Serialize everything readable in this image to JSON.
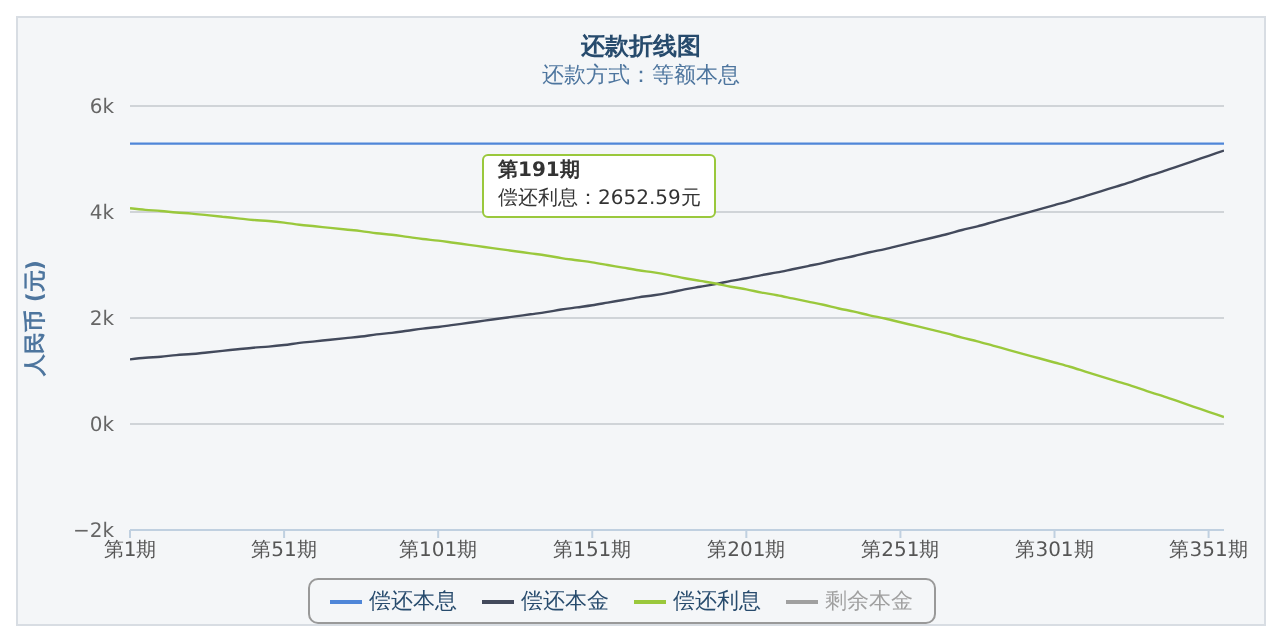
{
  "chart_data": {
    "type": "line",
    "title": "还款折线图",
    "subtitle": "还款方式：等额本息",
    "ylabel": "人民币 (元)",
    "categories": [
      "第1期",
      null,
      null,
      null,
      null,
      null,
      null,
      null,
      null,
      null,
      "第51期",
      null,
      null,
      null,
      null,
      null,
      null,
      null,
      null,
      null,
      "第101期",
      null,
      null,
      null,
      null,
      null,
      null,
      null,
      null,
      null,
      "第151期",
      null,
      null,
      null,
      null,
      null,
      null,
      null,
      null,
      null,
      "第201期",
      null,
      null,
      null,
      null,
      null,
      null,
      null,
      null,
      null,
      "第251期",
      null,
      null,
      null,
      null,
      null,
      null,
      null,
      null,
      null,
      "第301期",
      null,
      null,
      null,
      null,
      null,
      null,
      null,
      null,
      null,
      "第351期",
      null
    ],
    "ylim": [
      -2000,
      6000
    ],
    "yticks": [
      {
        "value": -2000,
        "label": "−2k"
      },
      {
        "value": 0,
        "label": "0k"
      },
      {
        "value": 2000,
        "label": "2k"
      },
      {
        "value": 4000,
        "label": "4k"
      },
      {
        "value": 6000,
        "label": "6k"
      }
    ],
    "series": [
      {
        "name": "偿还本息",
        "color": "#4f86d8",
        "values": [
          5290,
          5290,
          5290,
          5290,
          5290,
          5290,
          5290,
          5290,
          5290,
          5290,
          5290,
          5290,
          5290,
          5290,
          5290,
          5290,
          5290,
          5290,
          5290,
          5290,
          5290,
          5290,
          5290,
          5290,
          5290,
          5290,
          5290,
          5290,
          5290,
          5290,
          5290,
          5290,
          5290,
          5290,
          5290,
          5290,
          5290,
          5290,
          5290,
          5290,
          5290,
          5290,
          5290,
          5290,
          5290,
          5290,
          5290,
          5290,
          5290,
          5290,
          5290,
          5290,
          5290,
          5290,
          5290,
          5290,
          5290,
          5290,
          5290,
          5290,
          5290,
          5290,
          5290,
          5290,
          5290,
          5290,
          5290,
          5290,
          5290,
          5290,
          5290,
          5290
        ]
      },
      {
        "name": "偿还本金",
        "color": "#434a5c",
        "values": [
          1220,
          1250,
          1270,
          1300,
          1320,
          1350,
          1380,
          1410,
          1440,
          1460,
          1490,
          1530,
          1560,
          1590,
          1620,
          1650,
          1690,
          1720,
          1760,
          1800,
          1830,
          1870,
          1910,
          1950,
          1990,
          2030,
          2070,
          2110,
          2160,
          2200,
          2240,
          2290,
          2340,
          2390,
          2430,
          2480,
          2540,
          2590,
          2640,
          2700,
          2750,
          2810,
          2860,
          2920,
          2980,
          3040,
          3110,
          3170,
          3240,
          3300,
          3370,
          3440,
          3510,
          3580,
          3660,
          3730,
          3810,
          3890,
          3970,
          4050,
          4130,
          4210,
          4300,
          4390,
          4480,
          4570,
          4670,
          4760,
          4860,
          4960,
          5060,
          5160
        ]
      },
      {
        "name": "偿还利息",
        "color": "#9ac83c",
        "values": [
          4070,
          4040,
          4020,
          3990,
          3970,
          3940,
          3910,
          3880,
          3850,
          3830,
          3800,
          3760,
          3730,
          3700,
          3670,
          3640,
          3600,
          3570,
          3530,
          3490,
          3460,
          3420,
          3380,
          3340,
          3300,
          3260,
          3220,
          3180,
          3130,
          3090,
          3050,
          3000,
          2950,
          2900,
          2860,
          2810,
          2750,
          2700,
          2650,
          2590,
          2540,
          2480,
          2430,
          2370,
          2310,
          2250,
          2180,
          2120,
          2050,
          1990,
          1920,
          1850,
          1780,
          1710,
          1630,
          1560,
          1480,
          1400,
          1320,
          1240,
          1160,
          1080,
          990,
          900,
          810,
          720,
          620,
          530,
          430,
          330,
          230,
          130
        ]
      },
      {
        "name": "剩余本金",
        "color": "#a0a0a0",
        "values": [
          null,
          null,
          null,
          null,
          null,
          null,
          null,
          null,
          null,
          null,
          null,
          null,
          null,
          null,
          null,
          null,
          null,
          null,
          null,
          null,
          null,
          null,
          null,
          null,
          null,
          null,
          null,
          null,
          null,
          null,
          null,
          null,
          null,
          null,
          null,
          null,
          null,
          null,
          null,
          null,
          null,
          null,
          null,
          null,
          null,
          null,
          null,
          null,
          null,
          null,
          null,
          null,
          null,
          null,
          null,
          null,
          null,
          null,
          null,
          null,
          null,
          null,
          null,
          null,
          null,
          null,
          null,
          null,
          null,
          null,
          null,
          null
        ]
      }
    ],
    "annotations": [
      "第191期",
      "偿还利息：2652.59元"
    ],
    "grid": "y",
    "legend": "bottom",
    "marker": "none",
    "line_style": "solid"
  }
}
